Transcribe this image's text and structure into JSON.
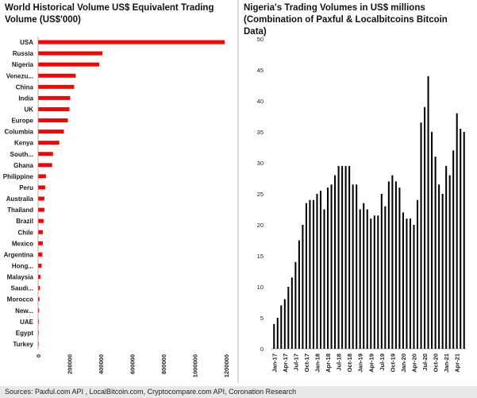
{
  "chart_data": [
    {
      "type": "bar",
      "orientation": "horizontal",
      "title": "World Historical Volume US$ Equivalent Trading Volume (US$'000)",
      "categories": [
        "USA",
        "Russia",
        "Nigeria",
        "Venezu...",
        "China",
        "India",
        "UK",
        "Europe",
        "Columbia",
        "Kenya",
        "South...",
        "Ghana",
        "Philippine",
        "Peru",
        "Australia",
        "Thailand",
        "Brazil",
        "Chile",
        "Mexico",
        "Argentina",
        "Hong...",
        "Malaysia",
        "Saudi...",
        "Morocco",
        "New...",
        "UAE",
        "Egypt",
        "Turkey"
      ],
      "values": [
        1190000,
        410000,
        390000,
        240000,
        230000,
        205000,
        200000,
        190000,
        165000,
        135000,
        95000,
        90000,
        50000,
        45000,
        40000,
        40000,
        35000,
        30000,
        30000,
        27000,
        22000,
        15000,
        12000,
        9000,
        7000,
        5000,
        3000,
        2000
      ],
      "xlim": [
        0,
        1200000
      ],
      "xticks": [
        0,
        200000,
        400000,
        600000,
        800000,
        1000000,
        1200000
      ],
      "xtick_labels": [
        "0",
        "200000",
        "400000",
        "600000",
        "800000",
        "1000000",
        "1200000"
      ],
      "grid": false,
      "colors": {
        "bar": "#ff0000"
      }
    },
    {
      "type": "bar",
      "title": "Nigeria's Trading Volumes in US$ millions (Combination of Paxful & Localbitcoins Bitcoin Data)",
      "x_labels": [
        "Jan-17",
        "Apr-17",
        "Jul-17",
        "Oct-17",
        "Jan-18",
        "Apr-18",
        "Jul-18",
        "Oct-18",
        "Jan-19",
        "Apr-19",
        "Jul-19",
        "Oct-19",
        "Jan-20",
        "Apr-20",
        "Jul-20",
        "Oct-20",
        "Jan-21",
        "Apr-21"
      ],
      "x_label_every": 3,
      "values": [
        4,
        5,
        7,
        8,
        10,
        11.5,
        14,
        17.5,
        20,
        23.5,
        24,
        24,
        25,
        25.5,
        22.5,
        26,
        26.5,
        28,
        29.5,
        29.5,
        29.5,
        29.5,
        26.5,
        26.5,
        22.5,
        23.5,
        22.5,
        21,
        21.5,
        21.5,
        25,
        23,
        27,
        28,
        27,
        26,
        22,
        21,
        21,
        20,
        24,
        36.5,
        39,
        44,
        35,
        31,
        26.5,
        25,
        29.5,
        28,
        32,
        38,
        35.5,
        35
      ],
      "ylim": [
        0,
        50
      ],
      "yticks": [
        0,
        5,
        10,
        15,
        20,
        25,
        30,
        35,
        40,
        45,
        50
      ],
      "grid": false,
      "colors": {
        "bar": "#000000"
      }
    }
  ],
  "footer": {
    "source": "Sources: Paxful.com API , LocalBitcoin.com, Cryptocompare.com API, Coronation Research"
  }
}
